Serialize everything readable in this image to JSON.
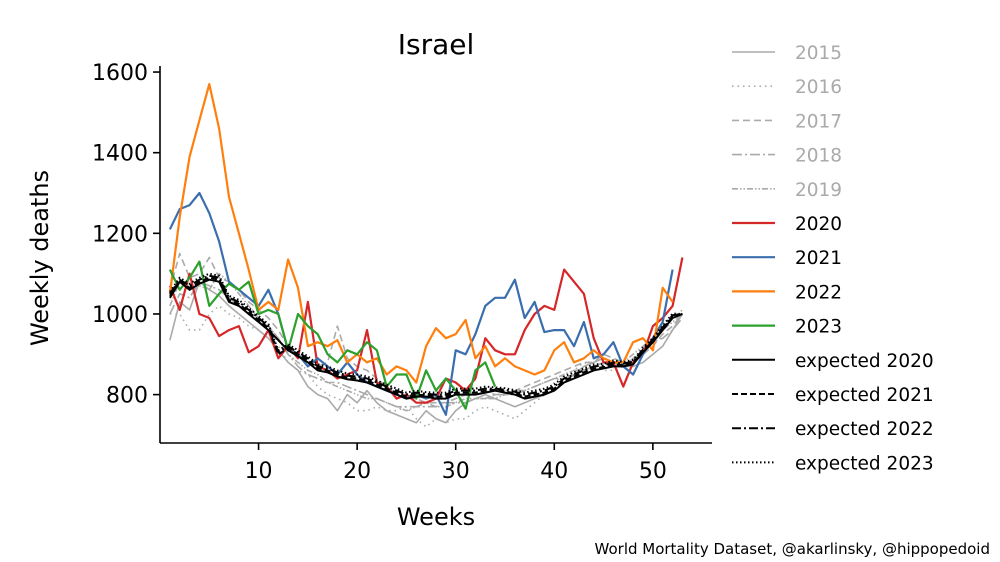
{
  "chart_data": {
    "type": "line",
    "title": "Israel",
    "xlabel": "Weeks",
    "ylabel": "Weekly deaths",
    "xlim": [
      0,
      56
    ],
    "ylim": [
      680,
      1615
    ],
    "xticks": [
      10,
      20,
      30,
      40,
      50
    ],
    "yticks": [
      800,
      1000,
      1200,
      1400,
      1600
    ],
    "legend_position": "right-outside",
    "grid": false,
    "series": [
      {
        "name": "2015",
        "color": "#aaaaaa",
        "dash": "solid",
        "width": 1.6,
        "values": [
          935,
          1030,
          1010,
          1080,
          1060,
          1045,
          1020,
          1000,
          980,
          960,
          940,
          910,
          880,
          860,
          820,
          800,
          790,
          760,
          800,
          780,
          810,
          780,
          760,
          750,
          740,
          730,
          760,
          740,
          730,
          760,
          780,
          790,
          800,
          790,
          780,
          770,
          780,
          790,
          800,
          810,
          830,
          850,
          870,
          880,
          890,
          880,
          870,
          870,
          880,
          900,
          920,
          960,
          1000
        ]
      },
      {
        "name": "2016",
        "color": "#aaaaaa",
        "dash": "1.5,4",
        "width": 1.6,
        "values": [
          1000,
          1000,
          960,
          960,
          1000,
          1020,
          1000,
          990,
          970,
          960,
          940,
          920,
          880,
          860,
          850,
          820,
          800,
          790,
          780,
          760,
          760,
          770,
          760,
          760,
          770,
          740,
          720,
          740,
          730,
          740,
          740,
          760,
          770,
          760,
          750,
          740,
          760,
          780,
          800,
          830,
          850,
          860,
          880,
          870,
          860,
          860,
          870,
          890,
          910,
          940,
          960,
          990,
          1010
        ]
      },
      {
        "name": "2017",
        "color": "#aaaaaa",
        "dash": "7,4",
        "width": 1.6,
        "values": [
          1060,
          1150,
          1090,
          1100,
          1140,
          1090,
          1080,
          1060,
          1030,
          1010,
          990,
          960,
          920,
          900,
          880,
          870,
          880,
          970,
          890,
          870,
          860,
          840,
          820,
          800,
          790,
          790,
          780,
          780,
          780,
          790,
          800,
          800,
          810,
          800,
          800,
          810,
          820,
          830,
          840,
          850,
          860,
          870,
          880,
          880,
          900,
          890,
          880,
          880,
          900,
          920,
          950,
          970,
          1000
        ]
      },
      {
        "name": "2018",
        "color": "#aaaaaa",
        "dash": "10,3,2,3",
        "width": 1.6,
        "values": [
          1000,
          1050,
          1040,
          1080,
          1070,
          1060,
          1040,
          1020,
          1000,
          980,
          970,
          940,
          900,
          870,
          850,
          840,
          830,
          830,
          820,
          810,
          800,
          790,
          780,
          770,
          770,
          770,
          770,
          770,
          780,
          780,
          780,
          790,
          790,
          800,
          800,
          810,
          810,
          820,
          830,
          840,
          840,
          850,
          860,
          870,
          880,
          870,
          870,
          890,
          900,
          930,
          940,
          960,
          990
        ]
      },
      {
        "name": "2019",
        "color": "#aaaaaa",
        "dash": "6,2,1.5,2,1.5,2",
        "width": 1.6,
        "values": [
          1020,
          1080,
          1060,
          1070,
          1060,
          1100,
          1080,
          1050,
          1020,
          990,
          970,
          940,
          900,
          880,
          860,
          850,
          830,
          820,
          810,
          800,
          790,
          790,
          780,
          770,
          760,
          770,
          780,
          770,
          770,
          780,
          790,
          790,
          790,
          790,
          800,
          800,
          810,
          820,
          830,
          840,
          850,
          860,
          860,
          870,
          880,
          880,
          880,
          900,
          920,
          940,
          960,
          980,
          1000
        ]
      },
      {
        "name": "2020",
        "color": "#d62728",
        "dash": "solid",
        "width": 2.2,
        "values": [
          1070,
          1010,
          1100,
          1000,
          990,
          945,
          960,
          970,
          905,
          920,
          960,
          890,
          920,
          890,
          1030,
          870,
          860,
          840,
          850,
          860,
          960,
          830,
          820,
          790,
          800,
          780,
          780,
          790,
          840,
          830,
          810,
          840,
          940,
          910,
          900,
          900,
          960,
          1000,
          1020,
          1010,
          1110,
          1080,
          1050,
          940,
          880,
          880,
          820,
          880,
          900,
          970,
          990,
          1020,
          1140
        ]
      },
      {
        "name": "2021",
        "color": "#3a6ead",
        "dash": "solid",
        "width": 2.2,
        "values": [
          1210,
          1260,
          1270,
          1300,
          1250,
          1180,
          1080,
          1060,
          1040,
          1020,
          1060,
          1000,
          910,
          900,
          870,
          890,
          870,
          850,
          880,
          850,
          830,
          820,
          810,
          800,
          790,
          800,
          790,
          800,
          750,
          910,
          900,
          950,
          1020,
          1040,
          1040,
          1085,
          990,
          1030,
          955,
          960,
          960,
          920,
          980,
          890,
          900,
          930,
          870,
          850,
          900,
          940,
          980,
          1110
        ]
      },
      {
        "name": "2022",
        "color": "#ff7f0e",
        "dash": "solid",
        "width": 2.2,
        "values": [
          1050,
          1240,
          1390,
          1480,
          1570,
          1460,
          1290,
          1200,
          1110,
          1010,
          1030,
          1010,
          1135,
          1065,
          920,
          930,
          920,
          935,
          880,
          900,
          880,
          890,
          850,
          870,
          860,
          830,
          920,
          965,
          940,
          950,
          985,
          890,
          920,
          870,
          890,
          870,
          860,
          850,
          860,
          910,
          930,
          880,
          890,
          910,
          890,
          880,
          880,
          930,
          940,
          910,
          1065,
          1030
        ]
      },
      {
        "name": "2023",
        "color": "#2ca02c",
        "dash": "solid",
        "width": 2.2,
        "values": [
          1110,
          1060,
          1090,
          1130,
          1020,
          1050,
          1075,
          1060,
          1080,
          1000,
          1010,
          1000,
          910,
          1000,
          970,
          950,
          900,
          880,
          910,
          900,
          930,
          910,
          820,
          850,
          850,
          790,
          860,
          810,
          840,
          810,
          765,
          860,
          880,
          820
        ]
      },
      {
        "name": "expected 2020",
        "color": "#000000",
        "dash": "solid",
        "width": 2.0,
        "values": [
          1040,
          1080,
          1060,
          1075,
          1085,
          1080,
          1030,
          1020,
          1000,
          980,
          960,
          935,
          910,
          895,
          880,
          860,
          855,
          845,
          838,
          835,
          830,
          820,
          810,
          800,
          790,
          795,
          795,
          790,
          790,
          800,
          800,
          800,
          805,
          810,
          805,
          800,
          790,
          795,
          800,
          810,
          830,
          840,
          850,
          860,
          865,
          870,
          870,
          875,
          905,
          930,
          960,
          990,
          1000
        ]
      },
      {
        "name": "expected 2021",
        "color": "#000000",
        "dash": "6,3",
        "width": 2.0,
        "values": [
          1045,
          1082,
          1065,
          1080,
          1090,
          1085,
          1035,
          1025,
          1005,
          985,
          965,
          900,
          915,
          900,
          885,
          865,
          860,
          850,
          842,
          840,
          835,
          825,
          815,
          805,
          795,
          800,
          798,
          795,
          795,
          805,
          805,
          805,
          810,
          812,
          808,
          803,
          795,
          800,
          805,
          815,
          835,
          845,
          855,
          865,
          868,
          875,
          873,
          878,
          908,
          933,
          963,
          993,
          1000
        ]
      },
      {
        "name": "expected 2022",
        "color": "#000000",
        "dash": "9,3,2,3",
        "width": 2.0,
        "values": [
          1050,
          1085,
          1070,
          1085,
          1095,
          1090,
          1040,
          1030,
          1010,
          990,
          970,
          905,
          920,
          905,
          890,
          870,
          865,
          855,
          847,
          845,
          840,
          830,
          820,
          810,
          800,
          805,
          802,
          800,
          800,
          810,
          810,
          810,
          815,
          815,
          812,
          807,
          800,
          805,
          810,
          820,
          840,
          850,
          860,
          870,
          872,
          880,
          877,
          882,
          912,
          937,
          967,
          997,
          1000
        ]
      },
      {
        "name": "expected 2023",
        "color": "#000000",
        "dash": "1.5,2.5",
        "width": 2.0,
        "values": [
          1055,
          1090,
          1075,
          1090,
          1100,
          1095,
          1045,
          1035,
          1015,
          995,
          975,
          910,
          925,
          910,
          895,
          875,
          870,
          860,
          852,
          850,
          845,
          835,
          825,
          815,
          805,
          810,
          806,
          805,
          805,
          815,
          815,
          815,
          820,
          818,
          816,
          811,
          805,
          810,
          815,
          825,
          845,
          855,
          865,
          875,
          876,
          885,
          881,
          886,
          916,
          941,
          971,
          1001,
          1000
        ]
      }
    ]
  },
  "credit": "World Mortality Dataset, @akarlinsky, @hippopedoid"
}
